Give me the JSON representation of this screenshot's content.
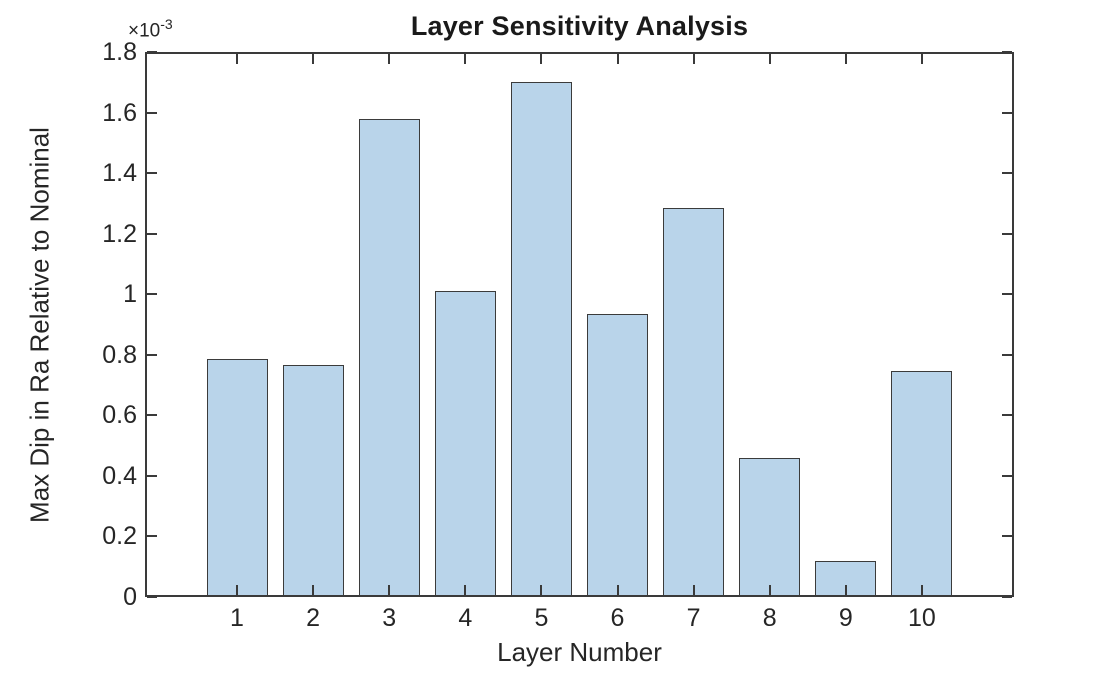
{
  "figure": {
    "title": "Layer Sensitivity Analysis",
    "xlabel": "Layer Number",
    "ylabel": "Max Dip in Ra Relative to Nominal",
    "exponent": {
      "base": "×10",
      "power": "-3"
    }
  },
  "chart_data": {
    "type": "bar",
    "title": "Layer Sensitivity Analysis",
    "xlabel": "Layer Number",
    "ylabel": "Max Dip in Ra Relative to Nominal",
    "y_axis_multiplier": "×10^-3",
    "categories": [
      "1",
      "2",
      "3",
      "4",
      "5",
      "6",
      "7",
      "8",
      "9",
      "10"
    ],
    "values_in_1e3_units": [
      0.785,
      0.765,
      1.58,
      1.01,
      1.7,
      0.935,
      1.285,
      0.46,
      0.12,
      0.745
    ],
    "values_absolute": [
      0.000785,
      0.000765,
      0.00158,
      0.00101,
      0.0017,
      0.000935,
      0.001285,
      0.00046,
      0.00012,
      0.000745
    ],
    "ylim": [
      0,
      1.8
    ],
    "yticks": [
      "0",
      "0.2",
      "0.4",
      "0.6",
      "0.8",
      "1",
      "1.2",
      "1.4",
      "1.6",
      "1.8"
    ],
    "grid": false,
    "legend": null,
    "bar_width_fraction": 0.8,
    "colors": {
      "bar_fill": "#B9D4EA",
      "bar_edge": "#3B3B3B",
      "axis": "#3A3A3A",
      "text": "#262626"
    }
  }
}
